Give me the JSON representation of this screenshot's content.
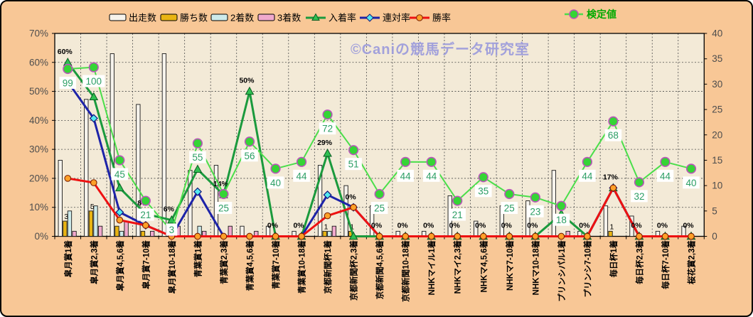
{
  "watermark": "©Caniの競馬データ研究室",
  "colors": {
    "page_bg": "#f8c796",
    "plot_bg": "#f3ead7",
    "bar_starts": "#f6f3ec",
    "bar_wins": "#e9b413",
    "bar_seconds": "#cdeaea",
    "bar_thirds": "#f0a9cd",
    "line_place_rate": "#1b9a3d",
    "marker_place_rate": "#2fc051",
    "line_quinella_rate": "#1d23a8",
    "marker_quinella_rate": "#52e9ef",
    "line_win_rate": "#ee1111",
    "marker_win_rate": "#ffa028",
    "line_test_value": "#4ade4a",
    "marker_test_value": "#35d435",
    "marker_test_edge": "#bb55bb",
    "test_label_text": "#2b9e64",
    "legend_test_text": "#00aa00",
    "watermark_color": "#9a9adc",
    "axis_text": "#4d4d4d",
    "category_text": "#000000"
  },
  "legend": {
    "items": [
      {
        "label": "出走数",
        "type": "bar",
        "color_key": "bar_starts"
      },
      {
        "label": "勝ち数",
        "type": "bar",
        "color_key": "bar_wins"
      },
      {
        "label": "2着数",
        "type": "bar",
        "color_key": "bar_seconds"
      },
      {
        "label": "3着数",
        "type": "bar",
        "color_key": "bar_thirds"
      },
      {
        "label": "入着率",
        "type": "line-triangle",
        "color_key": "line_place_rate"
      },
      {
        "label": "連対率",
        "type": "line-diamond",
        "color_key": "line_quinella_rate"
      },
      {
        "label": "勝率",
        "type": "line-circle",
        "color_key": "line_win_rate"
      }
    ],
    "test_item": {
      "label": "検定値",
      "type": "line-circle",
      "color_key": "line_test_value"
    }
  },
  "axes": {
    "left_ticks": [
      "70%",
      "60%",
      "50%",
      "40%",
      "30%",
      "20%",
      "10%",
      "0%"
    ],
    "left_values": [
      70,
      60,
      50,
      40,
      30,
      20,
      10,
      0
    ],
    "right_ticks": [
      "40",
      "35",
      "30",
      "25",
      "20",
      "15",
      "10",
      "5",
      "0"
    ],
    "right_values": [
      40,
      35,
      30,
      25,
      20,
      15,
      10,
      5,
      0
    ]
  },
  "chart_data": {
    "type": "combo bar+line",
    "title": "",
    "left_axis": {
      "unit": "%",
      "min": 0,
      "max": 70,
      "step": 10
    },
    "right_axis": {
      "min": 0,
      "max": 40,
      "step": 5
    },
    "grid": true,
    "categories": [
      "皐月賞1着",
      "皐月賞2,3着",
      "皐月賞4,5,6着",
      "皐月賞7-10着",
      "皐月賞10-18着",
      "青葉賞1着",
      "青葉賞2,3着",
      "青葉賞4,5,6着",
      "青葉賞7-10着",
      "青葉賞10-18着",
      "京都新聞杯1着",
      "京都新聞杯2,3着",
      "京都新聞4,5,6着",
      "京都新聞10-18着",
      "NHKマイル1着",
      "NHKマイ2,3着",
      "NHKマ4,5,6着",
      "NHKマ7-10着",
      "NHKマ10-18着",
      "プリンシパル1着",
      "プリンシ7-10着",
      "毎日杯1着",
      "毎日杯2,3着",
      "毎日杯7-10着",
      "桜花賞2,3着"
    ],
    "series": [
      {
        "name": "出走数",
        "type": "bar",
        "axis": "right",
        "values": [
          15,
          27,
          36,
          26,
          36,
          13,
          14,
          2,
          2,
          1,
          14,
          10,
          6,
          1,
          1,
          8,
          3,
          6,
          7,
          13,
          1,
          6,
          4,
          1,
          2
        ]
      },
      {
        "name": "勝ち数",
        "type": "bar",
        "axis": "right",
        "values": [
          3,
          5,
          2,
          1,
          0,
          0,
          0,
          0,
          0,
          0,
          1,
          1,
          0,
          0,
          0,
          0,
          0,
          0,
          0,
          0,
          0,
          1,
          0,
          0,
          0
        ],
        "point_labels": [
          "3",
          "5",
          null,
          null,
          null,
          null,
          null,
          null,
          null,
          null,
          "1",
          "1",
          null,
          null,
          null,
          null,
          null,
          null,
          null,
          null,
          null,
          "1",
          null,
          null,
          null
        ]
      },
      {
        "name": "2着数",
        "type": "bar",
        "axis": "right",
        "values": [
          5,
          6,
          1,
          0,
          0,
          2,
          0,
          0,
          0,
          0,
          1,
          0,
          0,
          0,
          0,
          0,
          0,
          0,
          0,
          0,
          0,
          0,
          0,
          0,
          0
        ]
      },
      {
        "name": "3着数",
        "type": "bar",
        "axis": "right",
        "values": [
          1,
          2,
          3,
          1,
          2,
          1,
          2,
          1,
          0,
          0,
          2,
          0,
          0,
          0,
          0,
          0,
          0,
          0,
          0,
          1,
          0,
          0,
          0,
          0,
          0
        ]
      },
      {
        "name": "入着率",
        "type": "line",
        "axis": "left",
        "marker": "triangle",
        "values": [
          60,
          48.1,
          16.7,
          7.7,
          5.6,
          23.1,
          14.3,
          50,
          0,
          0,
          28.6,
          0,
          0,
          0,
          0,
          0,
          0,
          0,
          0,
          7.7,
          0,
          16.7,
          0,
          0,
          0
        ],
        "point_labels": [
          "60%",
          null,
          null,
          "8%",
          "6%",
          null,
          "14%",
          "50%",
          "0%",
          "0%",
          "29%",
          "0%",
          "0%",
          "0%",
          "0%",
          "0%",
          "0%",
          "0%",
          "0%",
          null,
          "0%",
          "17%",
          "0%",
          "0%",
          "0%"
        ]
      },
      {
        "name": "連対率",
        "type": "line",
        "axis": "left",
        "marker": "diamond",
        "values": [
          53.3,
          40.7,
          8.3,
          3.8,
          0,
          15.4,
          0,
          0,
          0,
          0,
          14.3,
          10,
          0,
          0,
          0,
          0,
          0,
          0,
          0,
          0,
          0,
          16.7,
          0,
          0,
          0
        ]
      },
      {
        "name": "勝率",
        "type": "line",
        "axis": "left",
        "marker": "circle",
        "values": [
          20,
          18.5,
          5.6,
          3.8,
          0,
          0,
          0,
          0,
          0,
          0,
          7.1,
          10,
          0,
          0,
          0,
          0,
          0,
          0,
          0,
          0,
          0,
          16.7,
          0,
          0,
          0
        ]
      },
      {
        "name": "検定値",
        "type": "line",
        "axis": "right-x3",
        "marker": "circle-green",
        "values": [
          99,
          100,
          45,
          21,
          3,
          55,
          25,
          56,
          40,
          44,
          72,
          51,
          25,
          44,
          44,
          21,
          35,
          25,
          23,
          18,
          44,
          68,
          32,
          44,
          40
        ],
        "point_labels": [
          "99",
          "100",
          "45",
          "21",
          "3",
          "55",
          "25",
          "56",
          "40",
          "44",
          "72",
          "51",
          "25",
          "44",
          "44",
          "21",
          "35",
          "25",
          "23",
          "18",
          "44",
          "68",
          "32",
          "44",
          "40"
        ]
      }
    ]
  }
}
